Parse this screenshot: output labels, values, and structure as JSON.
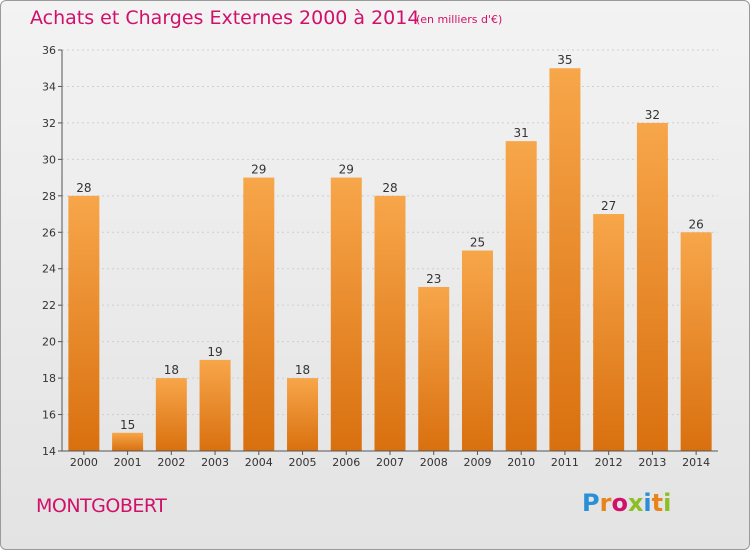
{
  "title": "Achats et Charges Externes 2000 à 2014",
  "unit": "(en milliers d'€)",
  "city": "MONTGOBERT",
  "logo": [
    "P",
    "r",
    "o",
    "x",
    "i",
    "t",
    "i"
  ],
  "logo_colors": [
    "#2a8fd6",
    "#e8841b",
    "#d0106a",
    "#8cbf26",
    "#2a8fd6",
    "#e8841b",
    "#8cbf26"
  ],
  "colors": {
    "bar_top": "#f7a64a",
    "bar_bottom": "#d9700f",
    "accent": "#d0106a"
  },
  "chart_data": {
    "type": "bar",
    "categories": [
      "2000",
      "2001",
      "2002",
      "2003",
      "2004",
      "2005",
      "2006",
      "2007",
      "2008",
      "2009",
      "2010",
      "2011",
      "2012",
      "2013",
      "2014"
    ],
    "values": [
      28,
      15,
      18,
      19,
      29,
      18,
      29,
      28,
      23,
      25,
      31,
      35,
      27,
      32,
      26
    ],
    "ylim": [
      14,
      36
    ],
    "yticks": [
      14,
      16,
      18,
      20,
      22,
      24,
      26,
      28,
      30,
      32,
      34,
      36
    ],
    "grid": true
  }
}
